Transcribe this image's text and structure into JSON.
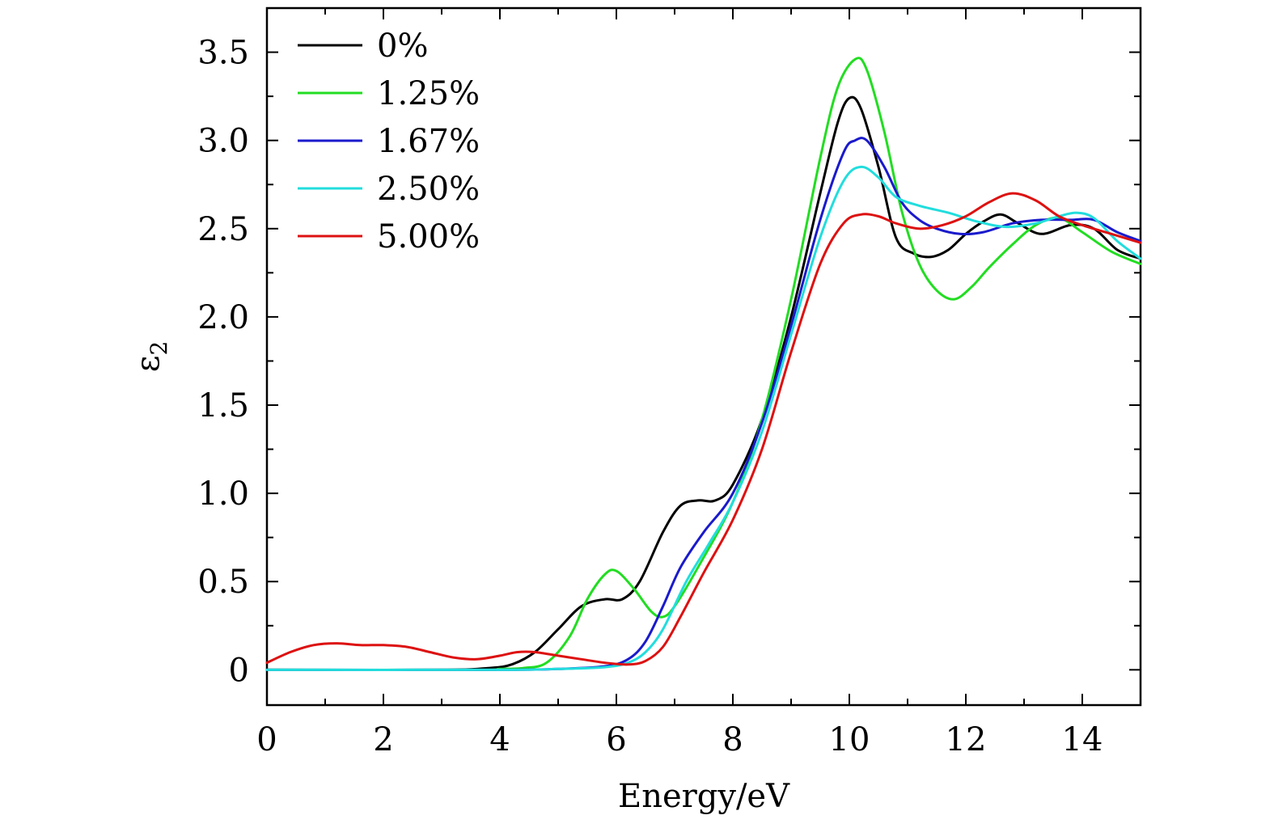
{
  "chart_data": {
    "type": "line",
    "title": "",
    "xlabel": "Energy/eV",
    "ylabel": "ε",
    "ylabel_sub": "2",
    "xlim": [
      0,
      15
    ],
    "ylim": [
      -0.2,
      3.75
    ],
    "x_ticks": [
      0,
      2,
      4,
      6,
      8,
      10,
      12,
      14
    ],
    "x_tick_labels": [
      "0",
      "2",
      "4",
      "6",
      "8",
      "10",
      "12",
      "14"
    ],
    "y_ticks": [
      0,
      0.5,
      1.0,
      1.5,
      2.0,
      2.5,
      3.0,
      3.5
    ],
    "y_tick_labels": [
      "0",
      "0.5",
      "1.0",
      "1.5",
      "2.0",
      "2.5",
      "3.0",
      "3.5"
    ],
    "grid": false,
    "legend_position": "top-left",
    "series": [
      {
        "name": "0%",
        "color": "#000000",
        "x": [
          0,
          3.0,
          3.8,
          4.2,
          4.6,
          5.0,
          5.4,
          5.8,
          6.1,
          6.4,
          6.8,
          7.1,
          7.4,
          7.7,
          8.0,
          8.5,
          9.0,
          9.5,
          9.8,
          10.0,
          10.2,
          10.5,
          10.8,
          11.1,
          11.4,
          11.7,
          12.0,
          12.3,
          12.6,
          12.9,
          13.3,
          13.8,
          14.2,
          14.6,
          15.0
        ],
        "y": [
          0,
          0,
          0.01,
          0.03,
          0.1,
          0.23,
          0.36,
          0.4,
          0.4,
          0.5,
          0.78,
          0.93,
          0.96,
          0.96,
          1.05,
          1.42,
          2.0,
          2.7,
          3.1,
          3.24,
          3.18,
          2.85,
          2.45,
          2.36,
          2.34,
          2.38,
          2.47,
          2.54,
          2.58,
          2.53,
          2.47,
          2.52,
          2.5,
          2.38,
          2.33
        ]
      },
      {
        "name": "1.25%",
        "color": "#22dd22",
        "x": [
          0,
          3.5,
          4.0,
          4.4,
          4.8,
          5.2,
          5.5,
          5.8,
          6.0,
          6.3,
          6.6,
          6.8,
          7.0,
          7.4,
          8.0,
          8.5,
          9.0,
          9.5,
          9.8,
          10.1,
          10.3,
          10.6,
          10.9,
          11.2,
          11.5,
          11.8,
          12.1,
          12.4,
          12.8,
          13.2,
          13.6,
          14.0,
          14.5,
          15.0
        ],
        "y": [
          0,
          0,
          0.005,
          0.01,
          0.04,
          0.19,
          0.4,
          0.54,
          0.56,
          0.46,
          0.33,
          0.3,
          0.36,
          0.58,
          0.95,
          1.42,
          2.1,
          2.9,
          3.3,
          3.46,
          3.4,
          3.05,
          2.6,
          2.3,
          2.15,
          2.1,
          2.17,
          2.28,
          2.41,
          2.52,
          2.56,
          2.48,
          2.37,
          2.3
        ]
      },
      {
        "name": "1.67%",
        "color": "#1a1acc",
        "x": [
          0,
          4.0,
          5.0,
          5.8,
          6.2,
          6.5,
          6.8,
          7.1,
          7.5,
          8.0,
          8.5,
          9.0,
          9.5,
          9.9,
          10.1,
          10.3,
          10.6,
          10.9,
          11.2,
          11.5,
          11.9,
          12.3,
          12.8,
          13.3,
          13.8,
          14.2,
          14.6,
          15.0
        ],
        "y": [
          0,
          0,
          0.005,
          0.02,
          0.06,
          0.16,
          0.36,
          0.58,
          0.78,
          1.0,
          1.4,
          1.95,
          2.55,
          2.93,
          3.0,
          3.0,
          2.85,
          2.65,
          2.55,
          2.5,
          2.47,
          2.48,
          2.53,
          2.55,
          2.55,
          2.55,
          2.48,
          2.43
        ]
      },
      {
        "name": "2.50%",
        "color": "#22dddd",
        "x": [
          0,
          4.0,
          5.0,
          5.8,
          6.2,
          6.5,
          6.8,
          7.2,
          7.6,
          8.0,
          8.5,
          9.0,
          9.5,
          9.9,
          10.2,
          10.5,
          10.8,
          11.2,
          11.7,
          12.2,
          12.7,
          13.2,
          13.6,
          13.9,
          14.2,
          14.6,
          15.0
        ],
        "y": [
          0,
          0,
          0.005,
          0.015,
          0.04,
          0.1,
          0.23,
          0.5,
          0.72,
          0.95,
          1.35,
          1.9,
          2.45,
          2.77,
          2.85,
          2.79,
          2.68,
          2.63,
          2.59,
          2.54,
          2.51,
          2.53,
          2.57,
          2.59,
          2.56,
          2.43,
          2.33
        ]
      },
      {
        "name": "5.00%",
        "color": "#dd1111",
        "x": [
          0,
          0.4,
          0.8,
          1.2,
          1.6,
          2.0,
          2.4,
          2.8,
          3.2,
          3.6,
          4.0,
          4.3,
          4.6,
          5.0,
          5.4,
          5.8,
          6.2,
          6.5,
          6.8,
          7.1,
          7.5,
          8.0,
          8.5,
          9.0,
          9.5,
          9.9,
          10.2,
          10.5,
          10.8,
          11.2,
          11.6,
          12.0,
          12.4,
          12.8,
          13.2,
          13.6,
          14.0,
          14.5,
          15.0
        ],
        "y": [
          0.04,
          0.1,
          0.14,
          0.15,
          0.14,
          0.14,
          0.13,
          0.1,
          0.07,
          0.06,
          0.08,
          0.1,
          0.1,
          0.08,
          0.06,
          0.04,
          0.03,
          0.05,
          0.13,
          0.3,
          0.55,
          0.85,
          1.25,
          1.8,
          2.3,
          2.53,
          2.58,
          2.57,
          2.53,
          2.5,
          2.52,
          2.57,
          2.65,
          2.7,
          2.66,
          2.57,
          2.52,
          2.47,
          2.42
        ]
      }
    ]
  }
}
